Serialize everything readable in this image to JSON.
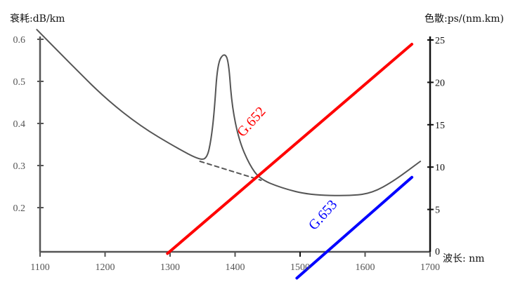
{
  "chart_data": {
    "type": "line",
    "title": "",
    "xlabel": "波长: nm",
    "ylabel_left": "衰耗:dB/km",
    "ylabel_right": "色散:ps/(nm.km)",
    "xlim": [
      1100,
      1700
    ],
    "ylim_left": [
      0.095,
      0.6
    ],
    "ylim_right": [
      0,
      25
    ],
    "x_ticks": [
      "1100",
      "1200",
      "1300",
      "1400",
      "1500",
      "1600",
      "1700"
    ],
    "x_tick_values": [
      1100,
      1200,
      1300,
      1400,
      1500,
      1600,
      1700
    ],
    "left_ticks": [
      "0.6",
      "0.5",
      "0.4",
      "0.3",
      "0.2"
    ],
    "left_tick_values": [
      0.6,
      0.5,
      0.4,
      0.3,
      0.2
    ],
    "right_ticks": [
      "25",
      "20",
      "15",
      "10",
      "5",
      "0"
    ],
    "right_tick_values": [
      25,
      20,
      15,
      10,
      5,
      0
    ],
    "grid": false,
    "series": [
      {
        "name": "attenuation",
        "axis": "left",
        "color": "#555555",
        "points": [
          [
            1095,
            0.623
          ],
          [
            1146,
            0.543
          ],
          [
            1200,
            0.46
          ],
          [
            1255,
            0.393
          ],
          [
            1309,
            0.343
          ],
          [
            1346,
            0.313
          ],
          [
            1357,
            0.318
          ],
          [
            1363,
            0.36
          ],
          [
            1368,
            0.427
          ],
          [
            1373,
            0.543
          ],
          [
            1383,
            0.568
          ],
          [
            1390,
            0.55
          ],
          [
            1395,
            0.443
          ],
          [
            1406,
            0.36
          ],
          [
            1422,
            0.302
          ],
          [
            1438,
            0.268
          ],
          [
            1471,
            0.247
          ],
          [
            1514,
            0.23
          ],
          [
            1579,
            0.228
          ],
          [
            1611,
            0.235
          ],
          [
            1644,
            0.263
          ],
          [
            1685,
            0.31
          ]
        ]
      },
      {
        "name": "attenuation-extrapolated",
        "axis": "left",
        "color": "#555555",
        "dashed": true,
        "points": [
          [
            1346,
            0.31
          ],
          [
            1440,
            0.265
          ]
        ]
      },
      {
        "name": "G.652",
        "axis": "right",
        "color": "#ff0000",
        "points": [
          [
            1296,
            -0.2
          ],
          [
            1672,
            24.5
          ]
        ]
      },
      {
        "name": "G.653",
        "axis": "right",
        "color": "#0000ff",
        "points": [
          [
            1495,
            -3.1
          ],
          [
            1672,
            8.8
          ]
        ]
      }
    ],
    "annotations": [
      {
        "text": "G.652",
        "color": "#ff0000",
        "at": [
          1430,
          15
        ]
      },
      {
        "text": "G.653",
        "color": "#0000ff",
        "at": [
          1540,
          4
        ]
      }
    ]
  }
}
